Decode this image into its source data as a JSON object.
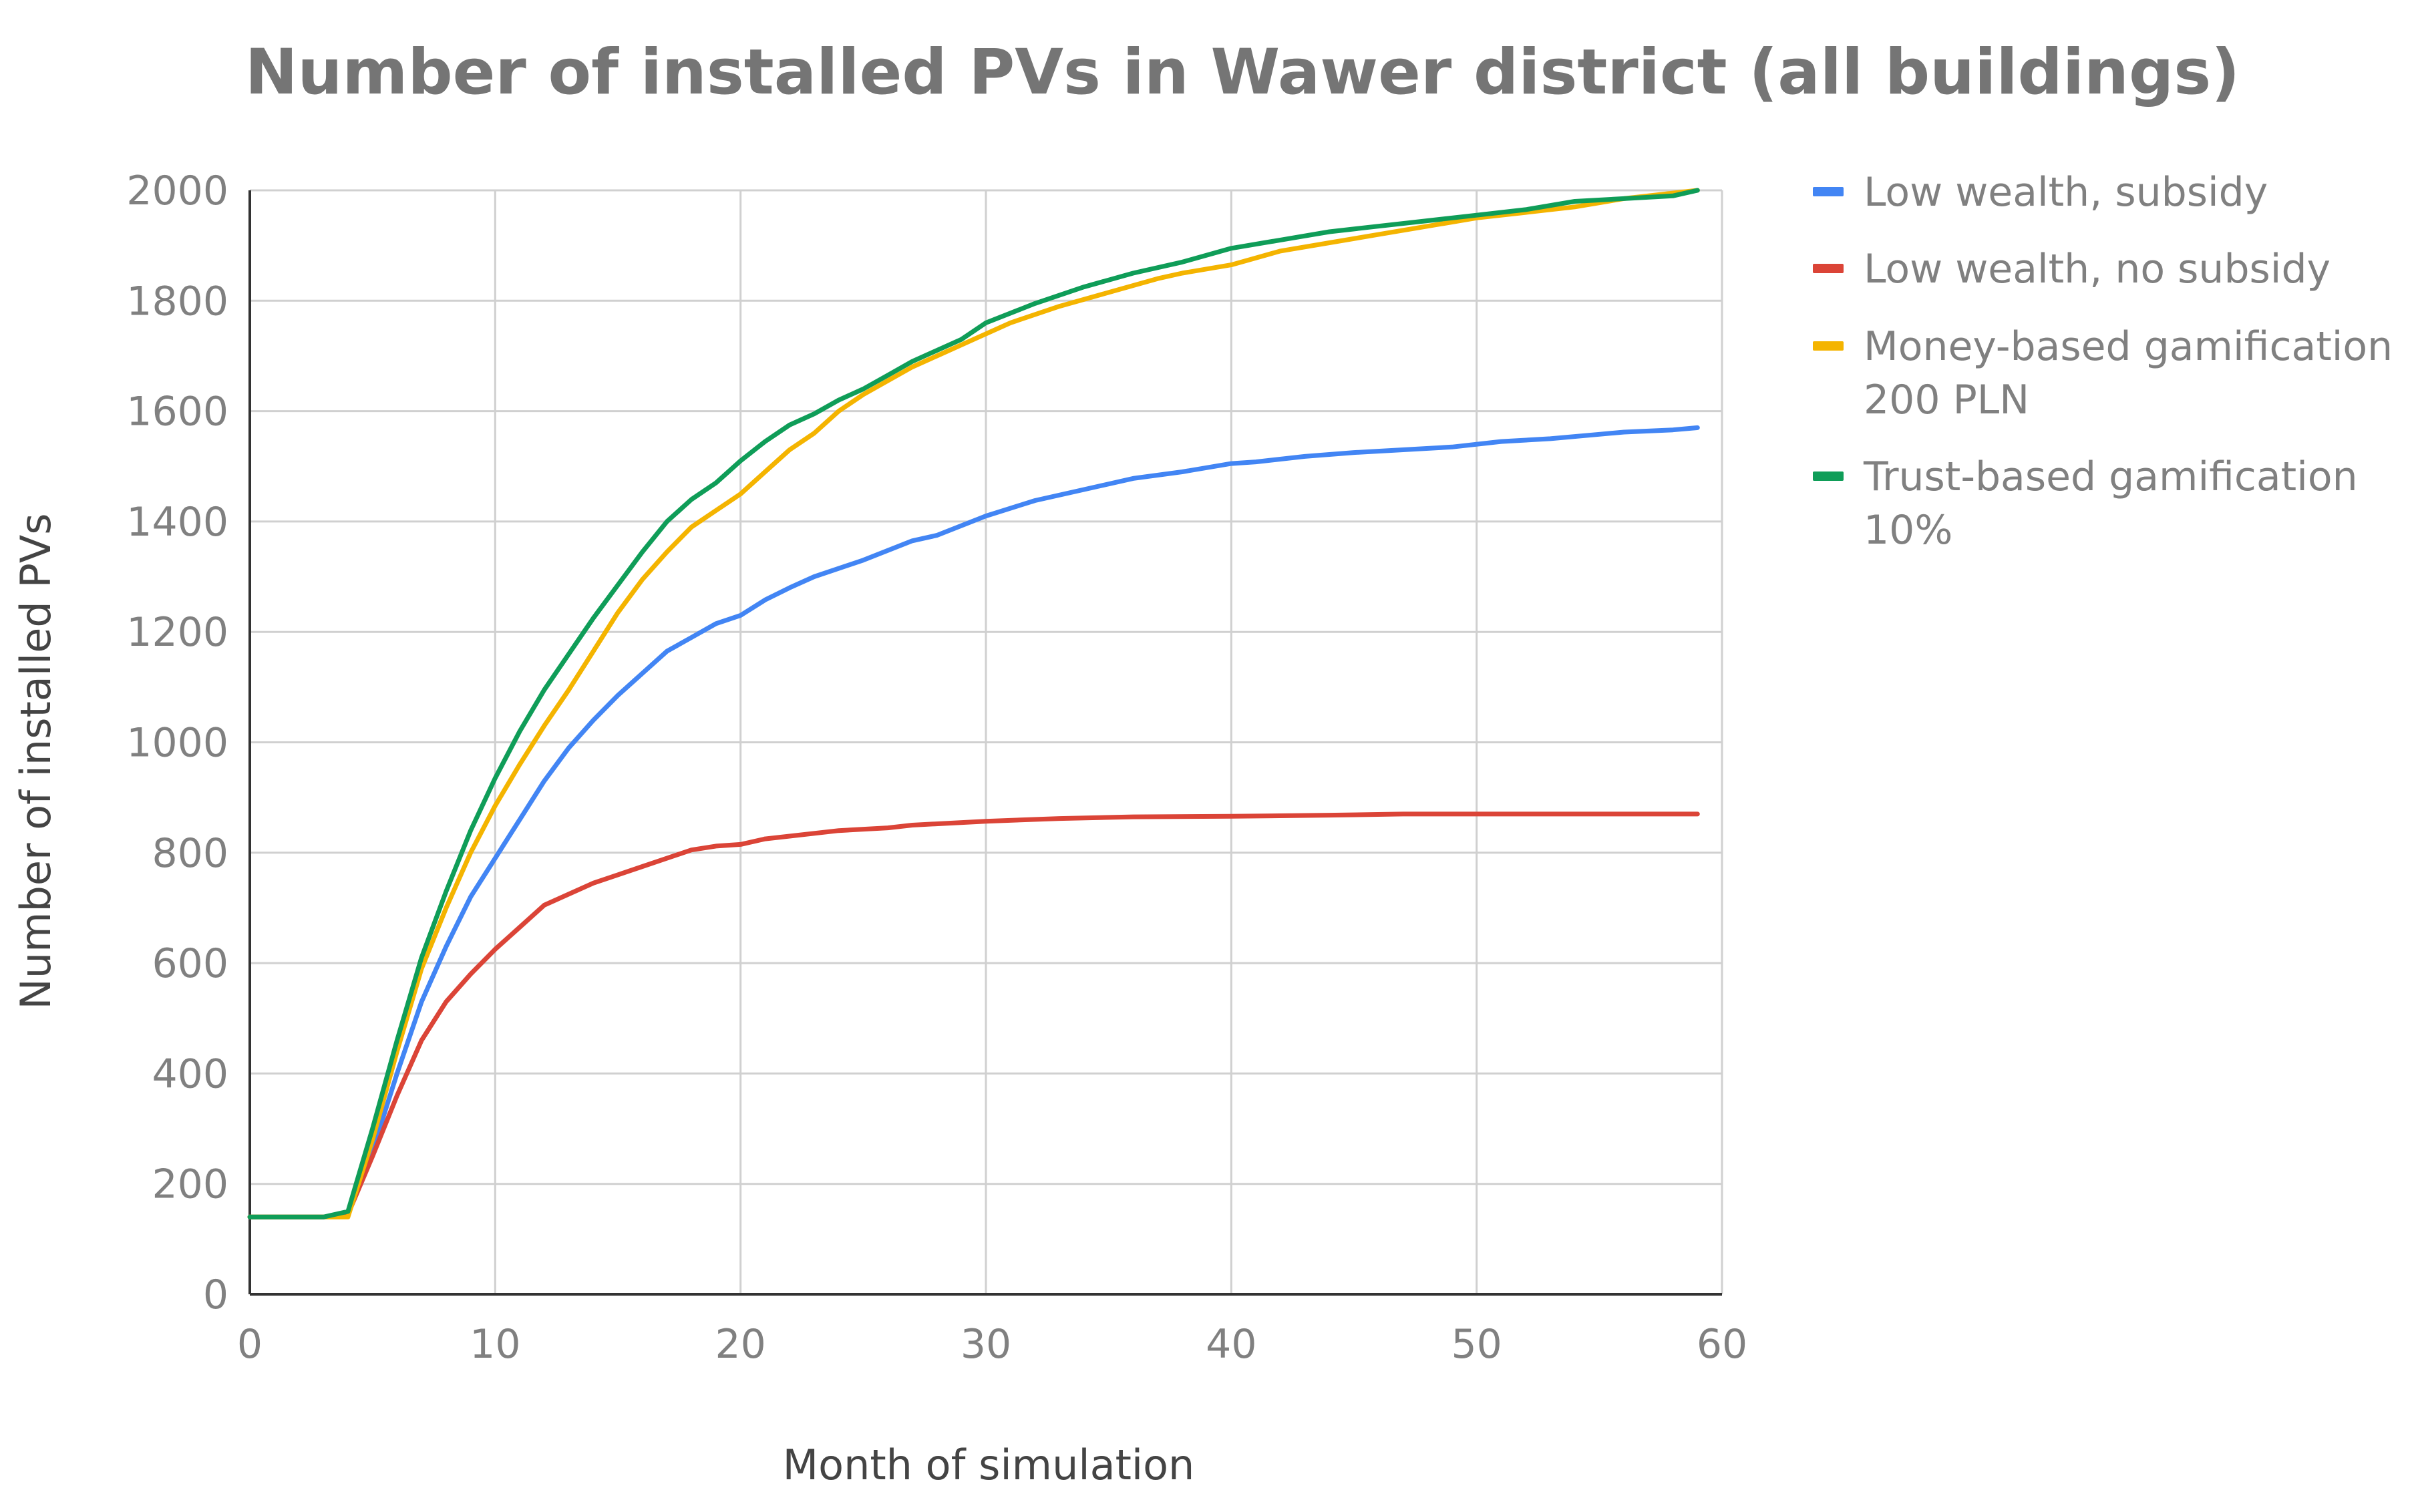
{
  "chart_data": {
    "type": "line",
    "title": "Number of installed PVs in Wawer district (all buildings)",
    "xlabel": "Month of simulation",
    "ylabel": "Number of installed PVs",
    "xlim": [
      0,
      60
    ],
    "ylim": [
      0,
      2000
    ],
    "xticks": [
      "0",
      "10",
      "20",
      "30",
      "40",
      "50",
      "60"
    ],
    "yticks": [
      "0",
      "200",
      "400",
      "600",
      "800",
      "1000",
      "1200",
      "1400",
      "1600",
      "1800",
      "2000"
    ],
    "grid": true,
    "legend_position": "right",
    "series": [
      {
        "name": "Low wealth, subsidy",
        "color": "#4285F4",
        "x": [
          0,
          3,
          4,
          5,
          6,
          7,
          8,
          9,
          10,
          11,
          12,
          13,
          14,
          15,
          16,
          17,
          18,
          19,
          20,
          21,
          22,
          23,
          25,
          27,
          28,
          30,
          32,
          34,
          36,
          38,
          40,
          41,
          43,
          45,
          47,
          49,
          51,
          53,
          55,
          56,
          58,
          59
        ],
        "y": [
          140,
          140,
          145,
          260,
          400,
          530,
          630,
          720,
          790,
          860,
          930,
          990,
          1040,
          1085,
          1125,
          1165,
          1190,
          1215,
          1230,
          1258,
          1280,
          1300,
          1330,
          1365,
          1375,
          1410,
          1438,
          1458,
          1478,
          1490,
          1505,
          1508,
          1518,
          1525,
          1530,
          1535,
          1545,
          1550,
          1558,
          1562,
          1566,
          1570
        ]
      },
      {
        "name": "Low wealth, no subsidy",
        "color": "#DB4437",
        "x": [
          0,
          3,
          4,
          5,
          6,
          7,
          8,
          9,
          10,
          11,
          12,
          13,
          14,
          15,
          16,
          17,
          18,
          19,
          20,
          21,
          22,
          24,
          26,
          27,
          30,
          33,
          36,
          40,
          44,
          47,
          50,
          55,
          59
        ],
        "y": [
          140,
          140,
          145,
          250,
          360,
          460,
          530,
          580,
          625,
          665,
          705,
          725,
          745,
          760,
          775,
          790,
          805,
          812,
          815,
          825,
          830,
          840,
          845,
          850,
          857,
          862,
          865,
          866,
          868,
          870,
          870,
          870,
          870
        ]
      },
      {
        "name": "Money-based gamification 200 PLN",
        "color": "#F4B400",
        "x": [
          0,
          3,
          4,
          5,
          6,
          7,
          8,
          9,
          10,
          11,
          12,
          13,
          14,
          15,
          16,
          17,
          18,
          19,
          20,
          21,
          22,
          23,
          24,
          25,
          26,
          27,
          28,
          29,
          30,
          31,
          33,
          35,
          37,
          38,
          40,
          42,
          44,
          46,
          48,
          50,
          52,
          54,
          56,
          58,
          59
        ],
        "y": [
          140,
          140,
          140,
          280,
          440,
          590,
          700,
          800,
          885,
          960,
          1030,
          1095,
          1165,
          1235,
          1295,
          1345,
          1390,
          1420,
          1450,
          1490,
          1530,
          1560,
          1600,
          1630,
          1655,
          1680,
          1700,
          1720,
          1740,
          1760,
          1790,
          1815,
          1840,
          1850,
          1865,
          1890,
          1905,
          1920,
          1935,
          1950,
          1960,
          1970,
          1985,
          1995,
          2000
        ]
      },
      {
        "name": "Trust-based gamification 10%",
        "color": "#0F9D58",
        "x": [
          0,
          3,
          4,
          5,
          6,
          7,
          8,
          9,
          10,
          11,
          12,
          13,
          14,
          15,
          16,
          17,
          18,
          19,
          20,
          21,
          22,
          23,
          24,
          25,
          26,
          27,
          28,
          29,
          30,
          32,
          34,
          36,
          38,
          40,
          42,
          44,
          46,
          48,
          50,
          52,
          54,
          56,
          58,
          59
        ],
        "y": [
          140,
          140,
          150,
          300,
          460,
          610,
          730,
          840,
          935,
          1020,
          1095,
          1160,
          1225,
          1285,
          1345,
          1400,
          1440,
          1470,
          1510,
          1545,
          1575,
          1595,
          1620,
          1640,
          1665,
          1690,
          1710,
          1730,
          1760,
          1795,
          1825,
          1850,
          1870,
          1895,
          1910,
          1925,
          1935,
          1945,
          1955,
          1965,
          1980,
          1985,
          1990,
          2000
        ]
      }
    ],
    "legend": [
      {
        "lines": [
          "Low wealth, subsidy"
        ],
        "color": "#4285F4"
      },
      {
        "lines": [
          "Low wealth, no subsidy"
        ],
        "color": "#DB4437"
      },
      {
        "lines": [
          "Money-based gamification",
          "200 PLN"
        ],
        "color": "#F4B400"
      },
      {
        "lines": [
          "Trust-based gamification",
          "10%"
        ],
        "color": "#0F9D58"
      }
    ]
  }
}
